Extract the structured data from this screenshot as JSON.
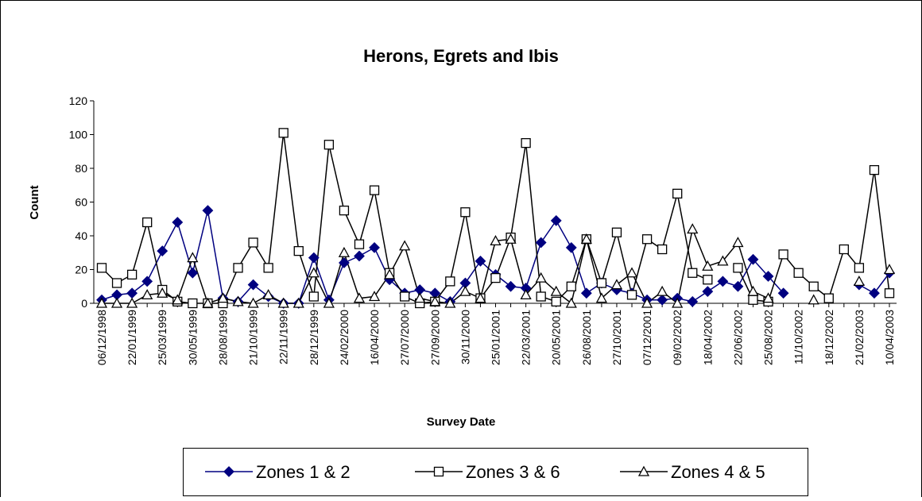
{
  "chart_data": {
    "type": "line",
    "title": "Herons, Egrets and Ibis",
    "x_label": "Survey Date",
    "y_label": "Count",
    "categories": [
      "06/12/1998",
      null,
      "22/01/1999",
      null,
      "25/03/1999",
      null,
      "30/05/1999",
      null,
      "28/08/1999",
      null,
      "21/10/1999",
      null,
      "22/11/1999",
      null,
      "28/12/1999",
      null,
      "24/02/2000",
      null,
      "16/04/2000",
      null,
      "27/07/2000",
      null,
      "27/09/2000",
      null,
      "30/11/2000",
      null,
      "25/01/2001",
      null,
      "22/03/2001",
      null,
      "20/05/2001",
      null,
      "26/08/2001",
      null,
      "27/10/2001",
      null,
      "07/12/2001",
      null,
      "09/02/2002",
      null,
      "18/04/2002",
      null,
      "22/06/2002",
      null,
      "25/08/2002",
      null,
      "11/10/2002",
      null,
      "18/12/2002",
      null,
      "21/02/2003",
      null,
      "10/04/2003"
    ],
    "series": [
      {
        "name": "Zones 1 & 2",
        "color": "#000080",
        "marker": "diamond",
        "values": [
          2,
          5,
          6,
          13,
          31,
          48,
          18,
          55,
          3,
          1,
          11,
          4,
          0,
          0,
          27,
          2,
          24,
          28,
          33,
          14,
          6,
          8,
          6,
          1,
          12,
          25,
          17,
          10,
          9,
          36,
          49,
          33,
          6,
          12,
          8,
          6,
          2,
          2,
          3,
          1,
          7,
          13,
          10,
          26,
          16,
          6,
          null,
          null,
          null,
          null,
          11,
          6,
          18
        ]
      },
      {
        "name": "Zones 3 & 6",
        "color": "#000000",
        "marker": "square",
        "values": [
          21,
          12,
          17,
          48,
          8,
          1,
          0,
          0,
          0,
          21,
          36,
          21,
          101,
          31,
          4,
          94,
          55,
          35,
          67,
          18,
          4,
          0,
          1,
          13,
          54,
          3,
          15,
          39,
          95,
          4,
          1,
          10,
          38,
          12,
          42,
          5,
          38,
          32,
          65,
          18,
          14,
          null,
          21,
          2,
          1,
          29,
          18,
          10,
          3,
          32,
          21,
          79,
          6
        ]
      },
      {
        "name": "Zones 4 & 5",
        "color": "#000000",
        "marker": "triangle",
        "values": [
          0,
          0,
          0,
          5,
          6,
          2,
          27,
          0,
          3,
          1,
          0,
          5,
          0,
          0,
          18,
          0,
          30,
          3,
          4,
          17,
          34,
          3,
          1,
          0,
          7,
          3,
          37,
          38,
          5,
          15,
          7,
          0,
          38,
          3,
          11,
          18,
          0,
          7,
          0,
          44,
          22,
          25,
          36,
          7,
          3,
          null,
          null,
          2,
          null,
          null,
          13,
          null,
          20
        ]
      }
    ],
    "ylim": [
      0,
      120
    ],
    "yticks": [
      0,
      20,
      40,
      60,
      80,
      100,
      120
    ],
    "legend": "bottom"
  }
}
